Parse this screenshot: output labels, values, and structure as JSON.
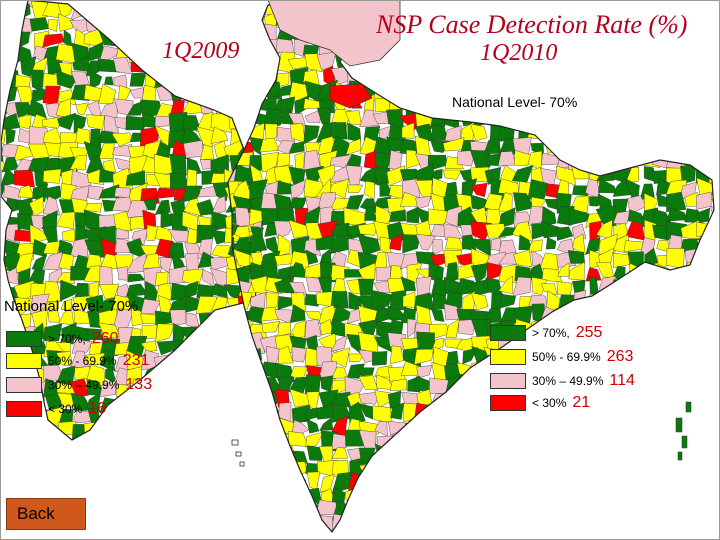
{
  "title_line1": "NSP Case Detection Rate (%)",
  "label_1q2010": "1Q2010",
  "label_1q2009": "1Q2009",
  "national_level_right": "National Level- 70%",
  "national_level_left": "National Level- 70%",
  "colors": {
    "gt70": "#0a7a0a",
    "mid50": "#ffff00",
    "mid30": "#f4c4cc",
    "lt30": "#ff0000",
    "sea": "#ffffff",
    "border": "#222222"
  },
  "legend_left": [
    {
      "label": "> 70%,",
      "count": "260",
      "color_key": "gt70"
    },
    {
      "label": "50% - 69.9%",
      "count": "231",
      "color_key": "mid50"
    },
    {
      "label": "30% – 49.9%",
      "count": "133",
      "color_key": "mid30"
    },
    {
      "label": "< 30%",
      "count": "16",
      "color_key": "lt30"
    }
  ],
  "legend_right": [
    {
      "label": "> 70%,",
      "count": "255",
      "color_key": "gt70"
    },
    {
      "label": "50% - 69.9%",
      "count": "263",
      "color_key": "mid50"
    },
    {
      "label": "30% – 49.9%",
      "count": "114",
      "color_key": "mid30"
    },
    {
      "label": "< 30%",
      "count": "21",
      "color_key": "lt30"
    }
  ],
  "back_label": "Back"
}
